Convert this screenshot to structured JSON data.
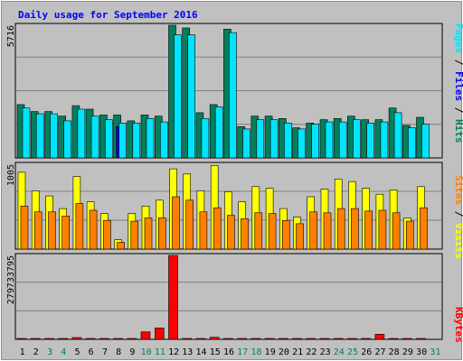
{
  "chart_data": {
    "type": "bar",
    "title": "Daily usage for September 2016",
    "days": [
      "1",
      "2",
      "3",
      "4",
      "5",
      "6",
      "7",
      "8",
      "9",
      "10",
      "11",
      "12",
      "13",
      "14",
      "15",
      "16",
      "17",
      "18",
      "19",
      "20",
      "21",
      "22",
      "23",
      "24",
      "25",
      "26",
      "27",
      "28",
      "29",
      "30",
      "31"
    ],
    "weekend_days": [
      "3",
      "4",
      "10",
      "11",
      "17",
      "18",
      "24",
      "25",
      "31"
    ],
    "panels": [
      {
        "id": "hits-panel",
        "max_label": "5716",
        "ylim": [
          0,
          5716
        ],
        "series": [
          {
            "name": "Hits",
            "color": "#00805c",
            "values": [
              2300,
              2000,
              2000,
              1800,
              2250,
              2100,
              1850,
              1850,
              1600,
              1850,
              1800,
              5716,
              5600,
              1950,
              2300,
              5550,
              1350,
              1800,
              1800,
              1700,
              1300,
              1500,
              1650,
              1700,
              1800,
              1650,
              1650,
              2150,
              1400,
              1750,
              0
            ]
          },
          {
            "name": "Files",
            "color": "#0000ff",
            "values": [
              0,
              0,
              0,
              0,
              0,
              0,
              0,
              1350,
              0,
              0,
              0,
              0,
              0,
              0,
              0,
              0,
              0,
              0,
              0,
              0,
              0,
              0,
              0,
              0,
              0,
              0,
              0,
              0,
              0,
              0,
              0
            ]
          },
          {
            "name": "Pages",
            "color": "#00e5ff",
            "values": [
              2150,
              1900,
              1900,
              1600,
              2100,
              1800,
              1650,
              1500,
              1500,
              1700,
              1550,
              5300,
              5300,
              1700,
              2200,
              5400,
              1250,
              1650,
              1650,
              1500,
              1250,
              1450,
              1550,
              1550,
              1650,
              1500,
              1550,
              1950,
              1300,
              1450,
              0
            ]
          }
        ]
      },
      {
        "id": "visits-panel",
        "max_label": "1005",
        "ylim": [
          0,
          1005
        ],
        "series": [
          {
            "name": "Visits",
            "color": "#ffff00",
            "values": [
              910,
              690,
              630,
              480,
              860,
              560,
              420,
              110,
              420,
              510,
              580,
              950,
              890,
              690,
              990,
              680,
              560,
              740,
              720,
              480,
              380,
              620,
              710,
              830,
              800,
              720,
              650,
              700,
              370,
              740,
              0
            ]
          },
          {
            "name": "Sites",
            "color": "#ff8000",
            "values": [
              510,
              440,
              440,
              390,
              540,
              460,
              340,
              80,
              330,
              370,
              370,
              620,
              580,
              440,
              490,
              400,
              360,
              430,
              420,
              340,
              300,
              440,
              430,
              480,
              480,
              450,
              460,
              430,
              330,
              490,
              0
            ]
          }
        ]
      },
      {
        "id": "kbytes-panel",
        "max_label": "279733795",
        "ylim": [
          0,
          279733795
        ],
        "series": [
          {
            "name": "KBytes",
            "color": "#ff0000",
            "values": [
              3000000,
              3000000,
              3000000,
              3000000,
              6000000,
              3000000,
              3000000,
              3000000,
              3000000,
              25000000,
              38000000,
              279733795,
              3000000,
              3000000,
              7000000,
              3000000,
              3000000,
              3000000,
              3000000,
              3000000,
              3000000,
              3000000,
              3000000,
              3000000,
              3000000,
              3000000,
              17000000,
              3000000,
              3000000,
              3000000,
              0
            ]
          }
        ]
      }
    ],
    "right_labels": [
      {
        "text": "Pages",
        "color": "#00e5ff"
      },
      {
        "text": " / ",
        "color": "#000000"
      },
      {
        "text": "Files",
        "color": "#0000ff"
      },
      {
        "text": " / ",
        "color": "#000000"
      },
      {
        "text": "Hits",
        "color": "#00805c"
      },
      {
        "text": "Sites",
        "color": "#ff8000"
      },
      {
        "text": " / ",
        "color": "#000000"
      },
      {
        "text": "Visits",
        "color": "#ffff00"
      },
      {
        "text": "KBytes",
        "color": "#ff0000"
      }
    ],
    "colors": {
      "title": "#0000ff",
      "weekday": "#000000",
      "weekend": "#00805c",
      "background": "#c0c0c0",
      "grid": "#808080"
    }
  }
}
